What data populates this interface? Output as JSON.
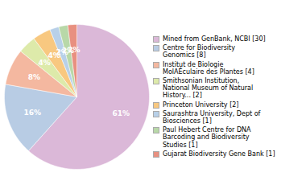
{
  "chart_data": {
    "type": "pie",
    "categories": [
      "Mined from GenBank, NCBI [30]",
      "Centre for Biodiversity\nGenomics [8]",
      "Institut de Biologie\nMolAÉculaire des Plantes [4]",
      "Smithsonian Institution,\nNational Museum of Natural\nHistory... [2]",
      "Princeton University [2]",
      "Saurashtra University, Dept of\nBiosciences [1]",
      "Paul Hebert Centre for DNA\nBarcoding and Biodiversity\nStudies [1]",
      "Gujarat Biodiversity Gene Bank [1]"
    ],
    "values": [
      61,
      16,
      8,
      4,
      4,
      2,
      2,
      2
    ],
    "value_labels": [
      "61%",
      "16%",
      "8%",
      "4%",
      "4%",
      "2%",
      "2%",
      "2%"
    ],
    "colors": [
      "#dbb8d8",
      "#b8cce4",
      "#f4b8a0",
      "#ddeaaa",
      "#f8c880",
      "#b8d0e8",
      "#b8d8a8",
      "#e89080"
    ],
    "data_labels": true,
    "legend": "right"
  }
}
